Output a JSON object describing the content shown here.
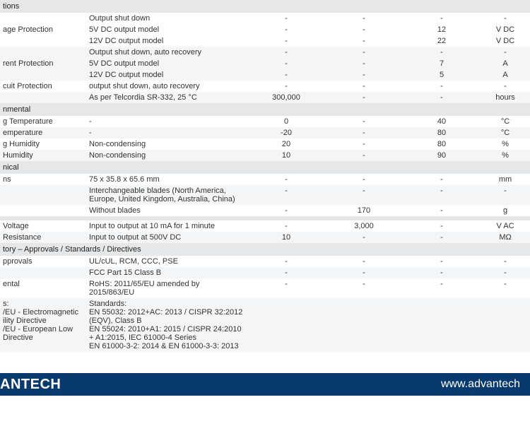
{
  "table": {
    "colWidths": {
      "label": 122,
      "cond": 228,
      "c1": 110,
      "c2": 110,
      "c3": 110,
      "unit": 70
    },
    "background": "#ffffff",
    "altBackground": "#f4f5f6",
    "headerBackground": "#e5e7e9",
    "fontSize": 11,
    "rows": [
      {
        "kind": "section",
        "label": "tions"
      },
      {
        "kind": "data",
        "label": "",
        "cond": "Output shut down",
        "c1": "-",
        "c2": "-",
        "c3": "-",
        "unit": "-"
      },
      {
        "kind": "data",
        "label": "age Protection",
        "cond": "5V DC output model",
        "c1": "-",
        "c2": "-",
        "c3": "12",
        "unit": "V DC"
      },
      {
        "kind": "data",
        "label": "",
        "cond": "12V DC output model",
        "c1": "-",
        "c2": "-",
        "c3": "22",
        "unit": "V DC"
      },
      {
        "kind": "data",
        "alt": true,
        "label": "",
        "cond": "Output shut down, auto recovery",
        "c1": "-",
        "c2": "-",
        "c3": "-",
        "unit": "-"
      },
      {
        "kind": "data",
        "alt": true,
        "label": "rent Protection",
        "cond": "5V DC output model",
        "c1": "-",
        "c2": "-",
        "c3": "7",
        "unit": "A"
      },
      {
        "kind": "data",
        "alt": true,
        "label": "",
        "cond": "12V DC output model",
        "c1": "-",
        "c2": "-",
        "c3": "5",
        "unit": "A"
      },
      {
        "kind": "data",
        "label": "cuit Protection",
        "cond": "output shut down, auto recovery",
        "c1": "-",
        "c2": "-",
        "c3": "-",
        "unit": "-"
      },
      {
        "kind": "data",
        "alt": true,
        "label": "",
        "cond": "As per Telcordia SR-332, 25 °C",
        "c1": "300,000",
        "c2": "-",
        "c3": "-",
        "unit": "hours"
      },
      {
        "kind": "section",
        "label": "nmental"
      },
      {
        "kind": "data",
        "label": "g Temperature",
        "cond": "-",
        "c1": "0",
        "c2": "-",
        "c3": "40",
        "unit": "°C"
      },
      {
        "kind": "data",
        "alt": true,
        "label": "emperature",
        "cond": "-",
        "c1": "-20",
        "c2": "-",
        "c3": "80",
        "unit": "°C"
      },
      {
        "kind": "data",
        "label": "g Humidity",
        "cond": "Non-condensing",
        "c1": "20",
        "c2": "-",
        "c3": "80",
        "unit": "%"
      },
      {
        "kind": "data",
        "alt": true,
        "label": "Humidity",
        "cond": "Non-condensing",
        "c1": "10",
        "c2": "-",
        "c3": "90",
        "unit": "%"
      },
      {
        "kind": "section",
        "label": "nical"
      },
      {
        "kind": "data",
        "label": "ns",
        "cond": " 75 x 35.8 x 65.6 mm",
        "c1": "-",
        "c2": "-",
        "c3": "-",
        "unit": "mm"
      },
      {
        "kind": "data",
        "alt": true,
        "label": "",
        "cond": "Interchangeable blades (North America, Europe, United Kingdom, Australia, China)",
        "c1": "-",
        "c2": "-",
        "c3": "-",
        "unit": "-"
      },
      {
        "kind": "data",
        "label": "",
        "cond": "Without blades",
        "c1": "-",
        "c2": "170",
        "c3": "-",
        "unit": "g"
      },
      {
        "kind": "section",
        "label": ""
      },
      {
        "kind": "data",
        "label": "Voltage",
        "cond": "Input to output at 10 mA for 1 minute",
        "c1": "-",
        "c2": "3,000",
        "c3": "-",
        "unit": "V AC"
      },
      {
        "kind": "data",
        "alt": true,
        "label": "Resistance",
        "cond": "Input to output at 500V DC",
        "c1": "10",
        "c2": "-",
        "c3": "-",
        "unit": "MΩ"
      },
      {
        "kind": "section",
        "label": "tory – Approvals / Standards / Directives"
      },
      {
        "kind": "data",
        "label": "pprovals",
        "cond": "UL/cUL, RCM, CCC, PSE",
        "c1": "-",
        "c2": "-",
        "c3": "-",
        "unit": "-"
      },
      {
        "kind": "data",
        "alt": true,
        "label": "",
        "cond": "FCC Part 15 Class B",
        "c1": "-",
        "c2": "-",
        "c3": "-",
        "unit": "-"
      },
      {
        "kind": "data",
        "label": "ental",
        "cond": "RoHS: 2011/65/EU amended by 2015/863/EU",
        "c1": "-",
        "c2": "-",
        "c3": "-",
        "unit": "-"
      },
      {
        "kind": "data",
        "alt": true,
        "label": "s:\n/EU - Electromagnetic\nility Directive\n/EU - European Low\nDirective",
        "cond": "Standards:\nEN 55032: 2012+AC: 2013 / CISPR 32:2012 (EQV), Class B\nEN 55024: 2010+A1: 2015 / CISPR 24:2010 + A1:2015, IEC 61000-4 Series\nEN 61000-3-2: 2014 & EN 61000-3-3: 2013",
        "c1": "",
        "c2": "",
        "c3": "",
        "unit": ""
      }
    ]
  },
  "footer": {
    "background": "#083a6d",
    "textColor": "#ffffff",
    "brand": "ANTECH",
    "url": "www.advantech"
  }
}
